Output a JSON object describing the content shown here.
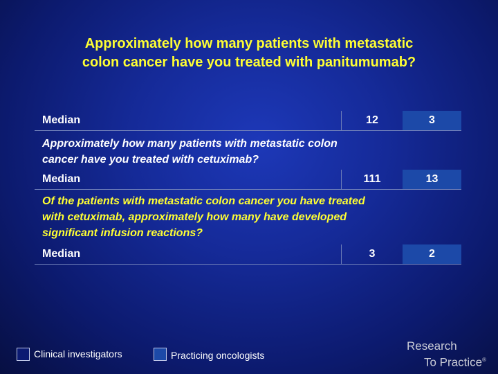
{
  "title_line1": "Approximately how many patients with metastatic",
  "title_line2": "colon cancer have you treated with panitumumab?",
  "rows": [
    {
      "label": "Median",
      "col1": "12",
      "col2": "3"
    },
    {
      "label": "Median",
      "col1": "111",
      "col2": "13"
    },
    {
      "label": "Median",
      "col1": "3",
      "col2": "2"
    }
  ],
  "question2_line1": "Approximately how many patients with metastatic colon",
  "question2_line2": "cancer have you treated with cetuximab?",
  "question3_line1": "Of the patients with metastatic colon cancer you have treated",
  "question3_line2": "with cetuximab, approximately how many have developed",
  "question3_line3": "significant infusion reactions?",
  "legend": [
    {
      "label": "Clinical investigators",
      "color": "#0b1a72"
    },
    {
      "label": "Practicing oncologists",
      "color": "#1c49a8"
    }
  ],
  "logo_line1": "Research",
  "logo_line2": "To Practice",
  "logo_mark": "®"
}
